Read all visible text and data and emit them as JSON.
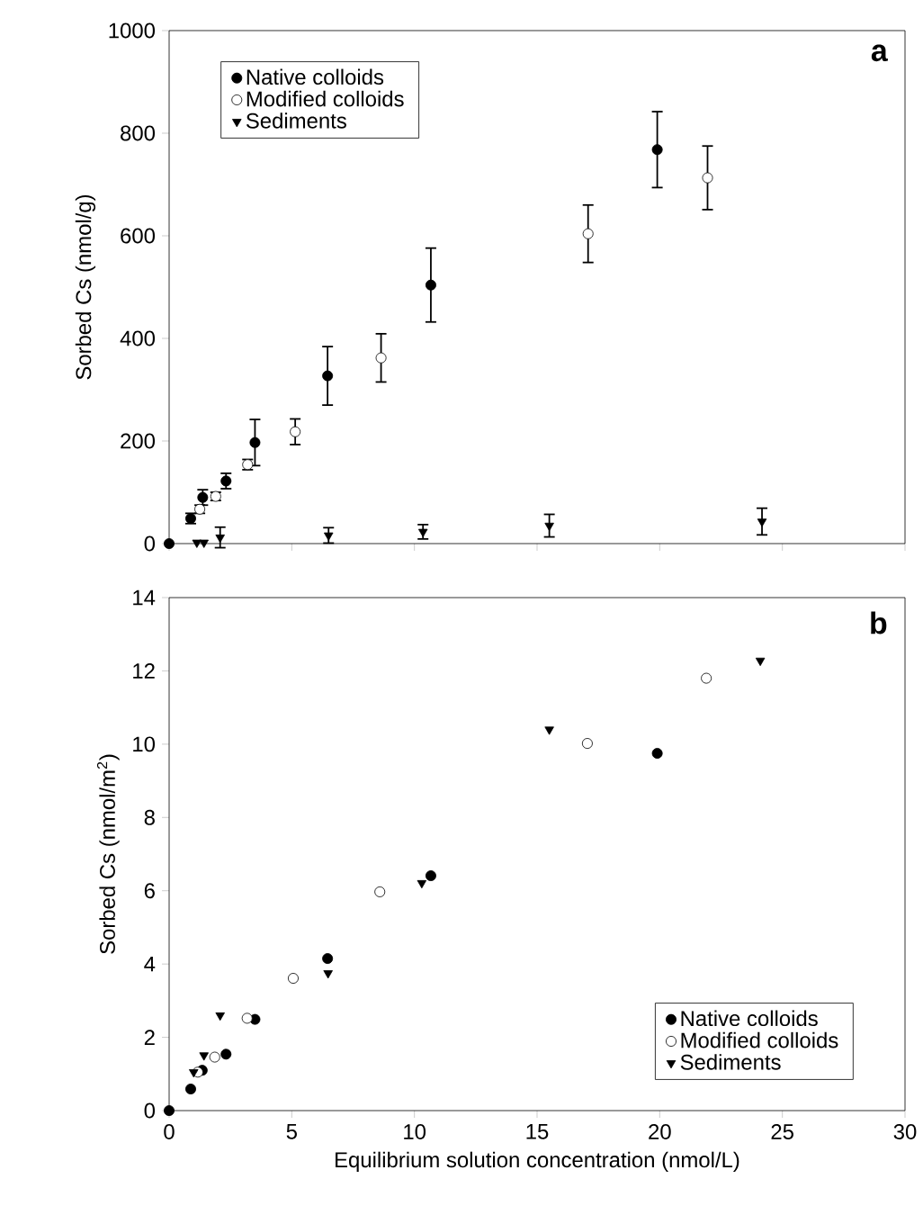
{
  "chart_data": [
    {
      "type": "scatter",
      "ylabel": "Sorbed Cs (nmol/g)",
      "annotations": [
        "a"
      ],
      "xlim": [
        0,
        30
      ],
      "xticks": [
        0,
        5,
        10,
        15,
        20,
        25,
        30
      ],
      "ylim": [
        0,
        1000
      ],
      "yticks": [
        0,
        200,
        400,
        600,
        800,
        1000
      ],
      "tick_labels": "y",
      "legend": "top left",
      "grid": false,
      "series": [
        {
          "name": "Native colloids",
          "color": "#000000",
          "marker": "circle",
          "x": [
            0,
            0.88,
            1.37,
            2.32,
            3.5,
            6.46,
            10.67,
            19.9
          ],
          "values": [
            0,
            49,
            90,
            122,
            197,
            327,
            504,
            768
          ],
          "errors": [
            null,
            10,
            15,
            15,
            45,
            57,
            72,
            74
          ]
        },
        {
          "name": "Modified colloids",
          "color": "#ffffff",
          "marker": "circle",
          "x": [
            1.25,
            1.9,
            3.2,
            5.14,
            8.64,
            17.08,
            21.95
          ],
          "values": [
            67,
            92,
            154,
            218,
            362,
            604,
            713
          ],
          "errors": [
            8,
            8,
            10,
            25,
            47,
            56,
            62
          ]
        },
        {
          "name": "Sediments",
          "color": "#000000",
          "marker": "triangle",
          "x": [
            1.13,
            1.42,
            2.08,
            6.5,
            10.35,
            15.5,
            24.17
          ],
          "values": [
            2,
            2,
            12,
            16,
            23,
            35,
            43
          ],
          "errors": [
            null,
            null,
            20,
            15,
            14,
            22,
            26
          ]
        }
      ]
    },
    {
      "type": "scatter",
      "xlabel": "Equilibrium solution concentration (nmol/L)",
      "ylabel": "Sorbed Cs (nmol/m$^{2}$)",
      "annotations": [
        "b"
      ],
      "xlim": [
        0,
        30
      ],
      "xticks": [
        0,
        5,
        10,
        15,
        20,
        25,
        30
      ],
      "ylim": [
        0,
        14
      ],
      "yticks": [
        0,
        2,
        4,
        6,
        8,
        10,
        12,
        14
      ],
      "legend": "bottom right",
      "grid": false,
      "series": [
        {
          "name": "Native colloids",
          "color": "#000000",
          "marker": "circle",
          "x": [
            0,
            0.88,
            1.35,
            2.32,
            3.5,
            6.46,
            10.67,
            19.9
          ],
          "values": [
            0,
            0.59,
            1.1,
            1.54,
            2.49,
            4.15,
            6.41,
            9.75
          ]
        },
        {
          "name": "Modified colloids",
          "color": "#ffffff",
          "marker": "circle",
          "x": [
            1.17,
            1.86,
            3.18,
            5.06,
            8.59,
            17.05,
            21.9
          ],
          "values": [
            1.05,
            1.46,
            2.52,
            3.61,
            5.97,
            10.02,
            11.8
          ]
        },
        {
          "name": "Sediments",
          "color": "#000000",
          "marker": "triangle",
          "x": [
            1.0,
            1.42,
            2.08,
            6.48,
            10.3,
            15.5,
            24.1
          ],
          "values": [
            1.05,
            1.51,
            2.6,
            3.75,
            6.21,
            10.4,
            12.28
          ]
        }
      ]
    }
  ]
}
